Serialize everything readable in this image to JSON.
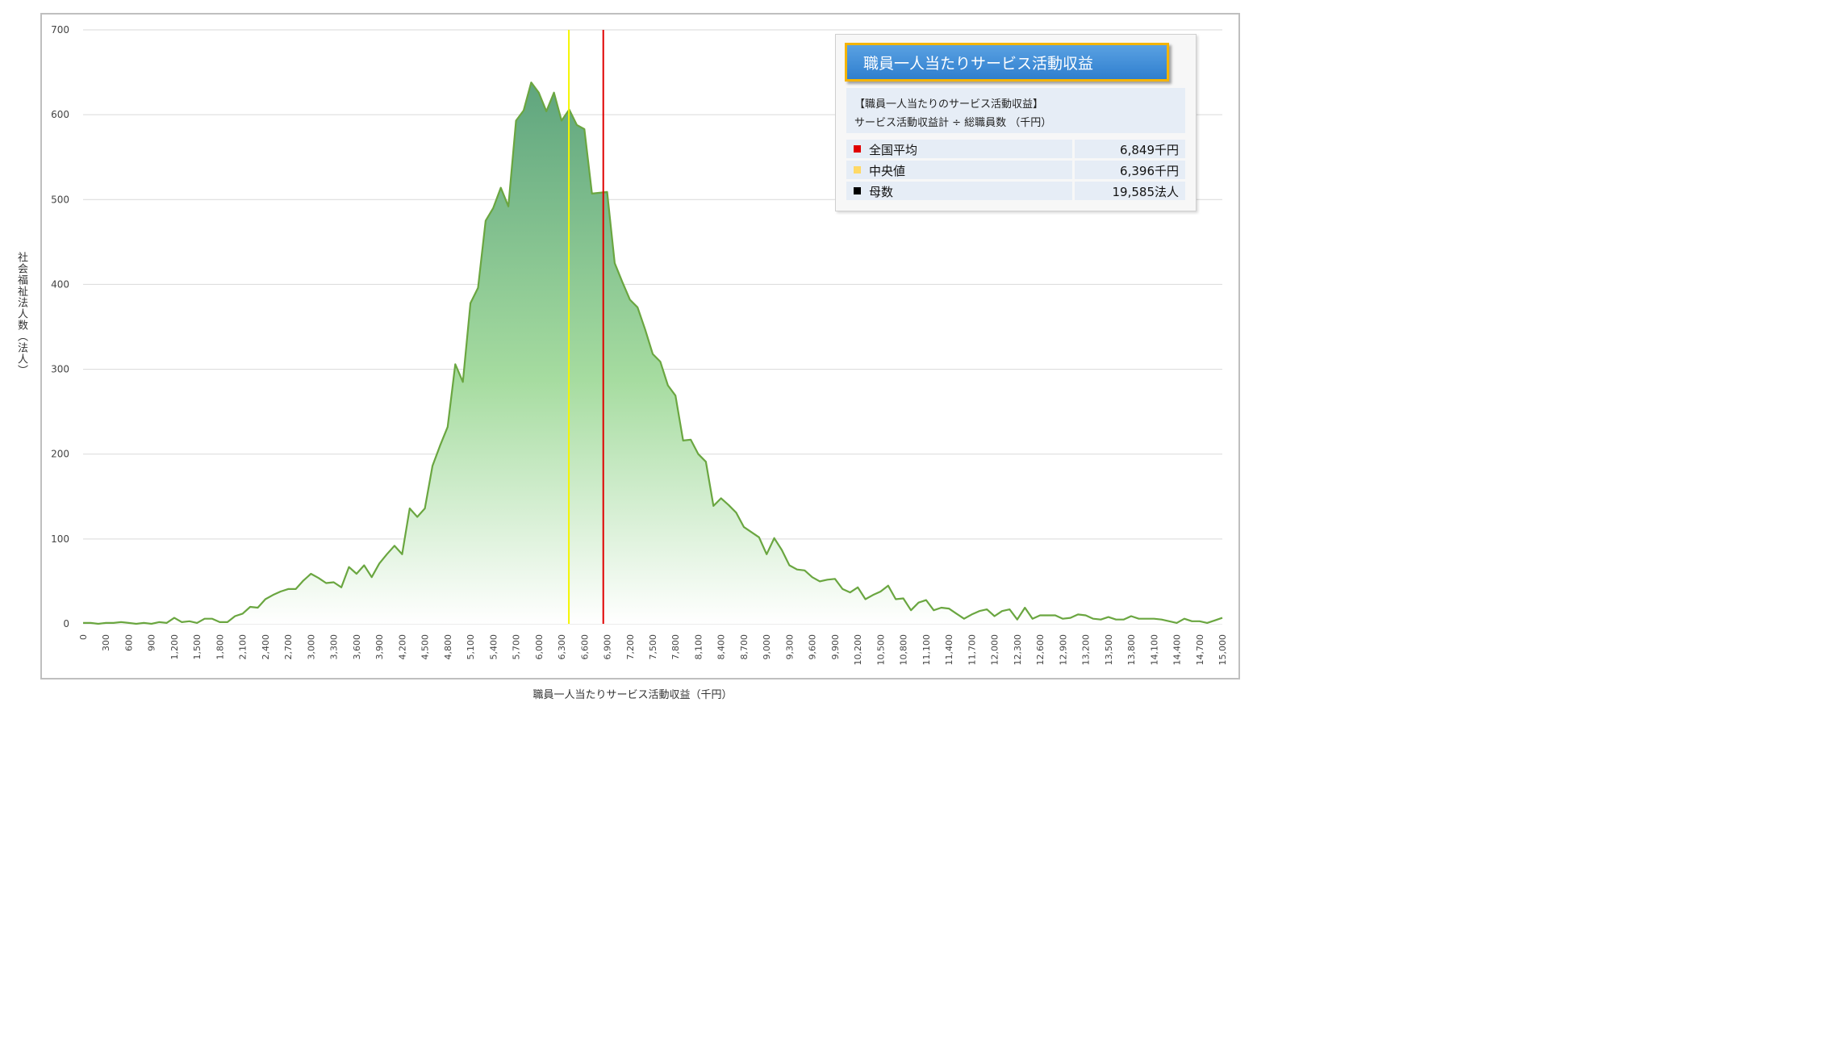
{
  "chart_data": {
    "type": "area",
    "xlabel": "職員一人当たりサービス活動収益（千円）",
    "ylabel": "社会福祉法人数（法人）",
    "ylim": [
      0,
      700
    ],
    "xlim": [
      0,
      15000
    ],
    "x_step": 100,
    "y_ticks": [
      "0",
      "100",
      "200",
      "300",
      "400",
      "500",
      "600",
      "700"
    ],
    "x_ticks": [
      "0",
      "300",
      "600",
      "900",
      "1,200",
      "1,500",
      "1,800",
      "2,100",
      "2,400",
      "2,700",
      "3,000",
      "3,300",
      "3,600",
      "3,900",
      "4,200",
      "4,500",
      "4,800",
      "5,100",
      "5,400",
      "5,700",
      "6,000",
      "6,300",
      "6,600",
      "6,900",
      "7,200",
      "7,500",
      "7,800",
      "8,100",
      "8,400",
      "8,700",
      "9,000",
      "9,300",
      "9,600",
      "9,900",
      "10,200",
      "10,500",
      "10,800",
      "11,100",
      "11,400",
      "11,700",
      "12,000",
      "12,300",
      "12,600",
      "12,900",
      "13,200",
      "13,500",
      "13,800",
      "14,100",
      "14,400",
      "14,700",
      "15,000"
    ],
    "grid": true,
    "values": [
      1,
      1,
      0,
      1,
      1,
      2,
      1,
      0,
      1,
      0,
      2,
      1,
      7,
      2,
      3,
      1,
      6,
      6,
      2,
      2,
      9,
      12,
      20,
      19,
      29,
      34,
      38,
      41,
      41,
      51,
      59,
      54,
      48,
      49,
      43,
      67,
      59,
      69,
      55,
      71,
      82,
      92,
      82,
      136,
      126,
      136,
      186,
      210,
      232,
      306,
      285,
      378,
      396,
      475,
      490,
      514,
      492,
      593,
      605,
      638,
      626,
      604,
      626,
      593,
      606,
      588,
      583,
      507,
      508,
      509,
      425,
      403,
      382,
      373,
      347,
      318,
      309,
      281,
      269,
      216,
      217,
      200,
      191,
      139,
      148,
      140,
      131,
      114,
      108,
      102,
      82,
      101,
      87,
      69,
      64,
      63,
      55,
      50,
      52,
      53,
      41,
      37,
      43,
      29,
      34,
      38,
      45,
      29,
      30,
      16,
      25,
      28,
      16,
      19,
      18,
      12,
      6,
      11,
      15,
      17,
      9,
      15,
      17,
      5,
      19,
      6,
      10,
      10,
      10,
      6,
      7,
      11,
      10,
      6,
      5,
      8,
      5,
      5,
      9,
      6,
      6,
      6,
      5,
      3,
      1,
      6,
      3,
      3,
      1,
      4,
      7
    ],
    "lines": [
      {
        "name": "全国平均",
        "x": 6849,
        "color": "#e00000"
      },
      {
        "name": "中央値",
        "x": 6396,
        "color": "#f5f500"
      }
    ],
    "colors": {
      "line": "#6aa640",
      "fill_top": "#6aad84",
      "fill_bottom": "#ffffff",
      "grid": "#d9d9d9"
    }
  },
  "legend": {
    "title": "職員一人当たりサービス活動収益",
    "formula_line1": "【職員一人当たりのサービス活動収益】",
    "formula_line2": "サービス活動収益計 ÷ 総職員数 （千円）",
    "stats": [
      {
        "label": "全国平均",
        "value": "6,849千円",
        "marker_color": "#e00000"
      },
      {
        "label": "中央値",
        "value": "6,396千円",
        "marker_color": "#ffd966"
      },
      {
        "label": "母数",
        "value": "19,585法人",
        "marker_color": "#000000"
      }
    ]
  }
}
